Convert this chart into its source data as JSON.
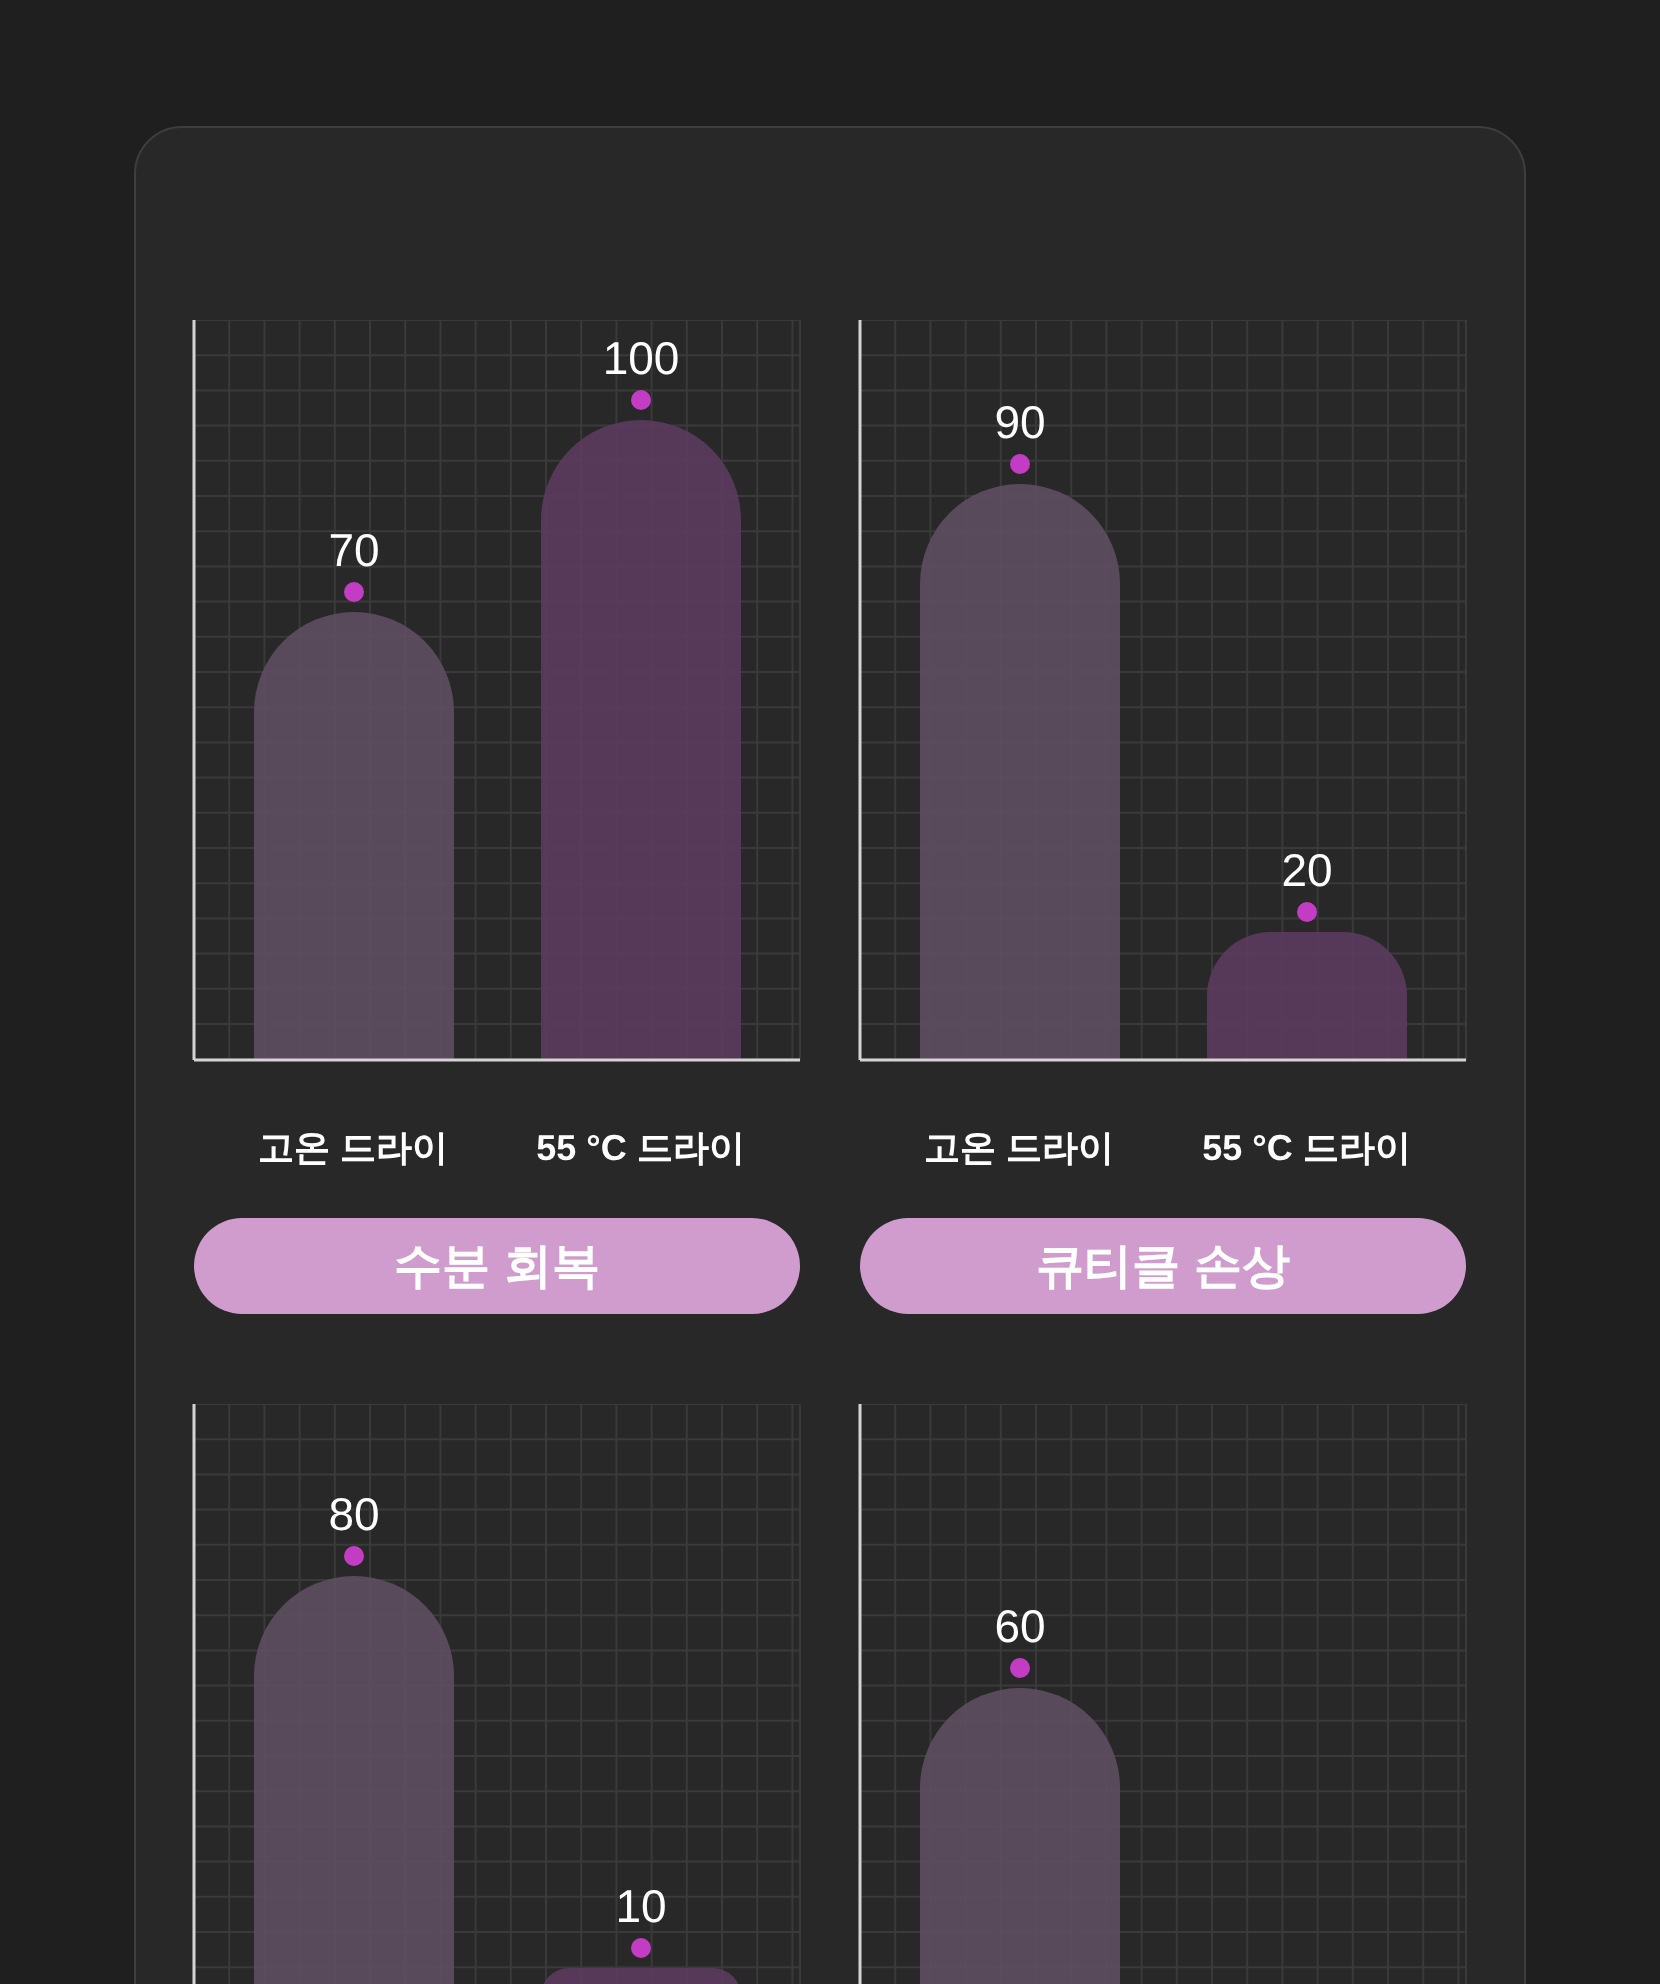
{
  "chart_data": [
    {
      "type": "bar",
      "title": "수분 회복",
      "categories": [
        "고온 드라이",
        "55 °C 드라이"
      ],
      "values": [
        70,
        100
      ],
      "colors": [
        "#5d4e5f",
        "#5a3a5c"
      ],
      "data_labels": true,
      "grid": true,
      "tick_labels": "x"
    },
    {
      "type": "bar",
      "title": "큐티클 손상",
      "categories": [
        "고온 드라이",
        "55 °C 드라이"
      ],
      "values": [
        90,
        20
      ],
      "colors": [
        "#5d4e5f",
        "#5a3a5c"
      ],
      "data_labels": true,
      "grid": true,
      "tick_labels": "x"
    },
    {
      "type": "bar",
      "categories": [
        null,
        null
      ],
      "values": [
        80,
        10
      ],
      "colors": [
        "#5d4e5f",
        "#5a3a5c"
      ],
      "data_labels": true,
      "grid": true,
      "tick_labels": false
    },
    {
      "type": "bar",
      "categories": [
        null,
        null
      ],
      "values": [
        60,
        null
      ],
      "colors": [
        "#5d4e5f",
        "#5a3a5c"
      ],
      "data_labels": true,
      "grid": true,
      "tick_labels": false
    }
  ]
}
